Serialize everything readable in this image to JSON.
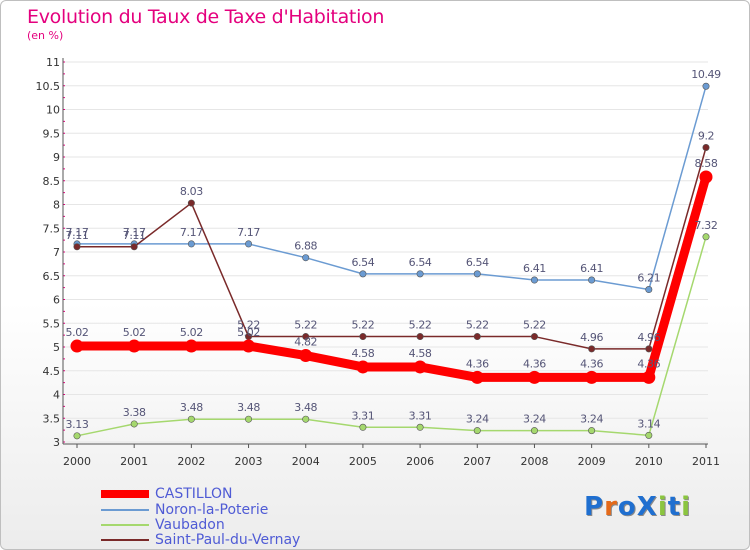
{
  "title": "Evolution du Taux de Taxe d'Habitation",
  "unit_label": "(en %)",
  "logo": {
    "text": "ProXiti",
    "letter_colors": [
      "#1f6fd0",
      "#e46a1a",
      "#1f6fd0",
      "#1f6fd0",
      "#8bc53f",
      "#1f6fd0",
      "#8bc53f"
    ]
  },
  "colors": {
    "title": "#e4007e",
    "legend_text": "#4f5bd5",
    "axis": "#555555",
    "tick_text": "#333333",
    "grid": "#e6e6e6",
    "value_label": "#555577"
  },
  "chart_data": {
    "type": "line",
    "title": "Evolution du Taux de Taxe d'Habitation",
    "ylabel": "(en %)",
    "xlabel": "",
    "x": [
      "2000",
      "2001",
      "2002",
      "2003",
      "2004",
      "2005",
      "2006",
      "2007",
      "2008",
      "2009",
      "2010",
      "2011"
    ],
    "ylim": [
      3,
      11
    ],
    "yticks": [
      "3",
      "3.5",
      "4",
      "4.5",
      "5",
      "5.5",
      "6",
      "6.5",
      "7",
      "7.5",
      "8",
      "8.5",
      "9",
      "9.5",
      "10",
      "10.5",
      "11"
    ],
    "grid": true,
    "legend_position": "bottom-left",
    "series": [
      {
        "name": "CASTILLON",
        "color": "#ff0000",
        "emphasis": true,
        "values": [
          5.02,
          5.02,
          5.02,
          5.02,
          4.82,
          4.58,
          4.58,
          4.36,
          4.36,
          4.36,
          4.36,
          8.58
        ],
        "labels": [
          "5.02",
          "5.02",
          "5.02",
          "5.02",
          "4.82",
          "4.58",
          "4.58",
          "4.36",
          "4.36",
          "4.36",
          "4.36",
          "8.58"
        ]
      },
      {
        "name": "Noron-la-Poterie",
        "color": "#6b9bd2",
        "emphasis": false,
        "values": [
          7.17,
          7.17,
          7.17,
          7.17,
          6.88,
          6.54,
          6.54,
          6.54,
          6.41,
          6.41,
          6.21,
          10.49
        ],
        "labels": [
          "7.17",
          "7.17",
          "7.17",
          "7.17",
          "6.88",
          "6.54",
          "6.54",
          "6.54",
          "6.41",
          "6.41",
          "6.21",
          "10.49"
        ]
      },
      {
        "name": "Vaubadon",
        "color": "#a5d86e",
        "emphasis": false,
        "values": [
          3.13,
          3.38,
          3.48,
          3.48,
          3.48,
          3.31,
          3.31,
          3.24,
          3.24,
          3.24,
          3.14,
          7.32
        ],
        "labels": [
          "3.13",
          "3.38",
          "3.48",
          "3.48",
          "3.48",
          "3.31",
          "3.31",
          "3.24",
          "3.24",
          "3.24",
          "3.14",
          "7.32"
        ]
      },
      {
        "name": "Saint-Paul-du-Vernay",
        "color": "#7a2a2a",
        "emphasis": false,
        "values": [
          7.11,
          7.11,
          8.03,
          5.22,
          5.22,
          5.22,
          5.22,
          5.22,
          5.22,
          4.96,
          4.96,
          9.2
        ],
        "labels": [
          "7.11",
          "7.11",
          "8.03",
          "5.22",
          "5.22",
          "5.22",
          "5.22",
          "5.22",
          "5.22",
          "4.96",
          "4.96",
          "9.2"
        ]
      }
    ]
  }
}
